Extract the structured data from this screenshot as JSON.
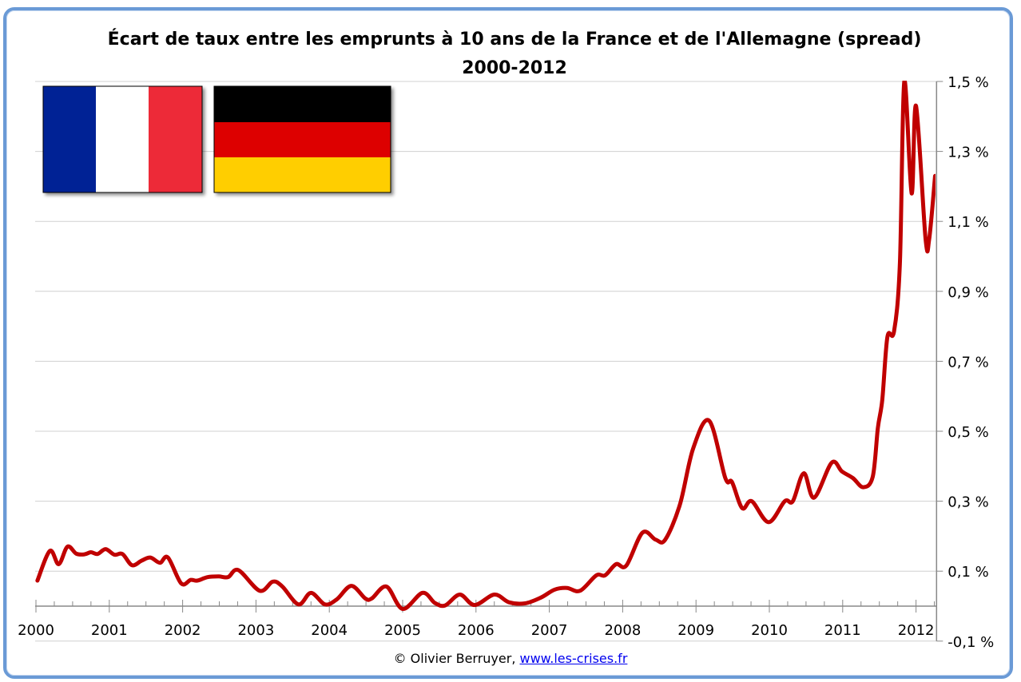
{
  "chart_data": {
    "type": "line",
    "title": "Écart de taux entre les emprunts à 10 ans de la France et de l'Allemagne (spread)",
    "subtitle": "2000-2012",
    "xlabel": "",
    "ylabel": "",
    "xlim": [
      2000,
      2012.28
    ],
    "ylim": [
      -0.1,
      1.5
    ],
    "y_axis_position": "right",
    "grid": true,
    "x_ticks": [
      "2000",
      "2001",
      "2002",
      "2003",
      "2004",
      "2005",
      "2006",
      "2007",
      "2008",
      "2009",
      "2010",
      "2011",
      "2012"
    ],
    "y_ticks": [
      "1,5 %",
      "1,3 %",
      "1,1 %",
      "0,9 %",
      "0,7 %",
      "0,5 %",
      "0,3 %",
      "0,1 %",
      "-0,1 %"
    ],
    "y_tick_values": [
      1.5,
      1.3,
      1.1,
      0.9,
      0.7,
      0.5,
      0.3,
      0.1,
      -0.1
    ],
    "line_color": "#c00000",
    "series": [
      {
        "x": [
          2000.02,
          2000.19,
          2000.31,
          2000.43,
          2000.55,
          2000.66,
          2000.75,
          2000.84,
          2000.95,
          2001.07,
          2001.18,
          2001.31,
          2001.44,
          2001.56,
          2001.69,
          2001.8,
          2001.98,
          2002.11,
          2002.2,
          2002.34,
          2002.49,
          2002.62,
          2002.76,
          2003.05,
          2003.23,
          2003.36,
          2003.58,
          2003.75,
          2003.94,
          2004.1,
          2004.3,
          2004.49,
          2004.58,
          2004.78,
          2005.0,
          2005.27,
          2005.44,
          2005.58,
          2005.78,
          2005.98,
          2006.25,
          2006.45,
          2006.67,
          2006.89,
          2007.07,
          2007.24,
          2007.42,
          2007.64,
          2007.76,
          2007.91,
          2008.05,
          2008.27,
          2008.45,
          2008.58,
          2008.78,
          2008.96,
          2009.18,
          2009.4,
          2009.49,
          2009.63,
          2009.76,
          2009.99,
          2010.21,
          2010.32,
          2010.47,
          2010.61,
          2010.85,
          2010.99,
          2011.14,
          2011.28,
          2011.41,
          2011.48,
          2011.54,
          2011.61,
          2011.7,
          2011.78,
          2011.84,
          2011.94,
          2012.0,
          2012.13,
          2012.18,
          2012.26
        ],
        "y": [
          0.073,
          0.158,
          0.12,
          0.17,
          0.15,
          0.148,
          0.154,
          0.149,
          0.163,
          0.147,
          0.149,
          0.117,
          0.13,
          0.139,
          0.124,
          0.139,
          0.065,
          0.075,
          0.073,
          0.083,
          0.085,
          0.083,
          0.103,
          0.044,
          0.07,
          0.056,
          0.005,
          0.038,
          0.005,
          0.019,
          0.058,
          0.022,
          0.022,
          0.056,
          -0.008,
          0.038,
          0.009,
          0.002,
          0.033,
          0.003,
          0.033,
          0.011,
          0.008,
          0.025,
          0.047,
          0.052,
          0.044,
          0.088,
          0.088,
          0.12,
          0.116,
          0.21,
          0.19,
          0.19,
          0.29,
          0.45,
          0.53,
          0.366,
          0.355,
          0.28,
          0.3,
          0.24,
          0.3,
          0.3,
          0.38,
          0.31,
          0.41,
          0.385,
          0.366,
          0.34,
          0.37,
          0.51,
          0.59,
          0.77,
          0.785,
          0.98,
          1.5,
          1.18,
          1.43,
          1.05,
          1.05,
          1.23
        ]
      }
    ]
  },
  "flags": {
    "france": [
      "#002395",
      "#ffffff",
      "#ed2939"
    ],
    "germany": [
      "#000000",
      "#dd0000",
      "#ffce00"
    ]
  },
  "credit": {
    "text": "© Olivier Berruyer, ",
    "link": "www.les-crises.fr"
  }
}
